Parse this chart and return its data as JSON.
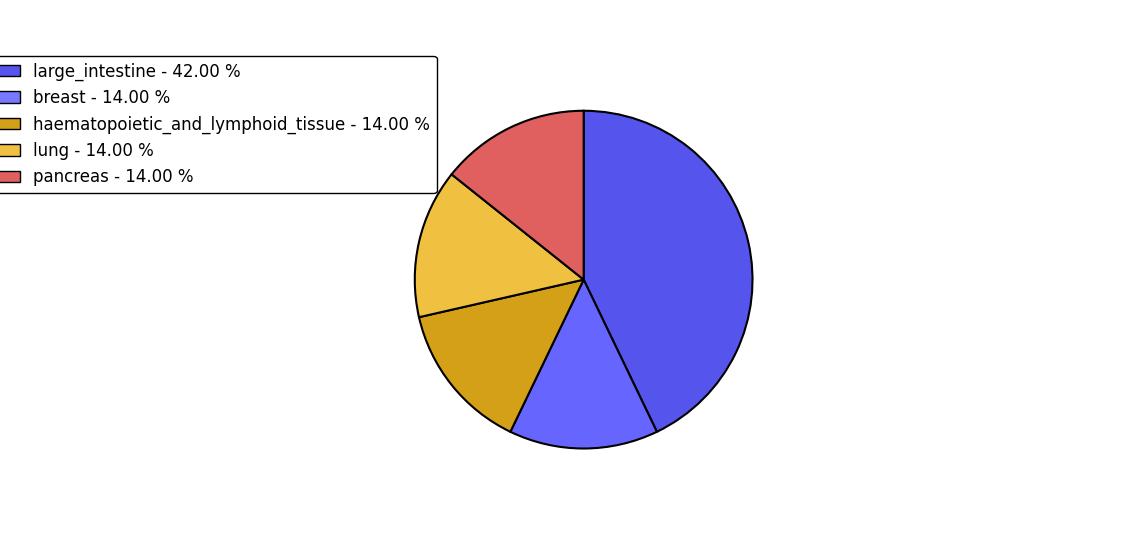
{
  "labels": [
    "large_intestine",
    "breast",
    "haematopoietic_and_lymphoid_tissue",
    "lung",
    "pancreas"
  ],
  "values": [
    42,
    14,
    14,
    14,
    14
  ],
  "colors": [
    "#5555ee",
    "#6666ff",
    "#d4a017",
    "#f0c040",
    "#e06060"
  ],
  "legend_labels": [
    "large_intestine - 42.00 %",
    "breast - 14.00 %",
    "haematopoietic_and_lymphoid_tissue - 14.00 %",
    "lung - 14.00 %",
    "pancreas - 14.00 %"
  ],
  "legend_colors": [
    "#5555ee",
    "#7777ff",
    "#d4a017",
    "#f0c040",
    "#e06060"
  ],
  "startangle": 90,
  "figsize": [
    11.45,
    5.38
  ],
  "background_color": "#ffffff"
}
